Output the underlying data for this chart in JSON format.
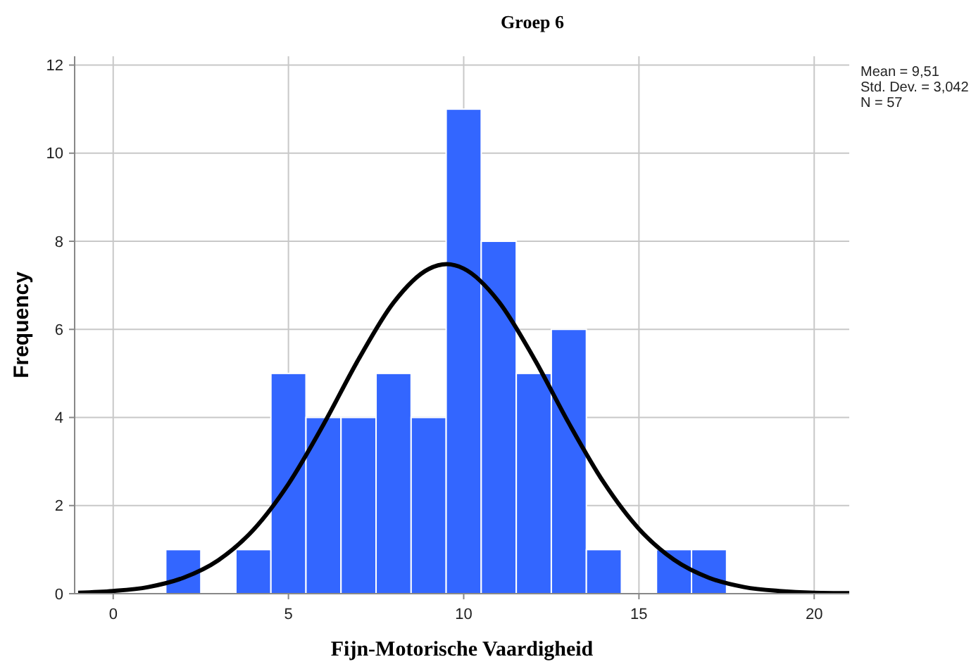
{
  "chart_data": {
    "type": "histogram",
    "title": "Groep 6",
    "xlabel": "Fijn-Motorische Vaardigheid",
    "ylabel": "Frequency",
    "annotations": [
      "Mean = 9,51",
      "Std. Dev. = 3,042",
      "N = 57"
    ],
    "bins": [
      1.5,
      2.5,
      3.5,
      4.5,
      5.5,
      6.5,
      7.5,
      8.5,
      9.5,
      10.5,
      11.5,
      12.5,
      13.5,
      14.5,
      15.5,
      16.5,
      17.5
    ],
    "values": [
      1,
      0,
      1,
      5,
      4,
      4,
      5,
      4,
      11,
      8,
      5,
      6,
      1,
      0,
      1,
      1
    ],
    "color": "#3366ff",
    "series": [
      {
        "type": "line",
        "color": "#000000",
        "x": [
          -1,
          0,
          1,
          2,
          3,
          4,
          5,
          6,
          7,
          8,
          9,
          9.51,
          10,
          11,
          12,
          13,
          14,
          15,
          16,
          17,
          18,
          19,
          20,
          21
        ],
        "values": [
          0.02,
          0.06,
          0.15,
          0.36,
          0.76,
          1.45,
          2.49,
          3.84,
          5.32,
          6.61,
          7.37,
          7.48,
          7.38,
          6.63,
          5.35,
          3.87,
          2.52,
          1.47,
          0.77,
          0.36,
          0.15,
          0.06,
          0.02,
          0.01
        ]
      }
    ],
    "xlim": [
      -1.1,
      21
    ],
    "xticks": [
      0,
      5,
      10,
      15,
      20
    ],
    "ylim": [
      0,
      12.2
    ],
    "yticks": [
      0,
      2,
      4,
      6,
      8,
      10,
      12
    ],
    "grid": true
  }
}
